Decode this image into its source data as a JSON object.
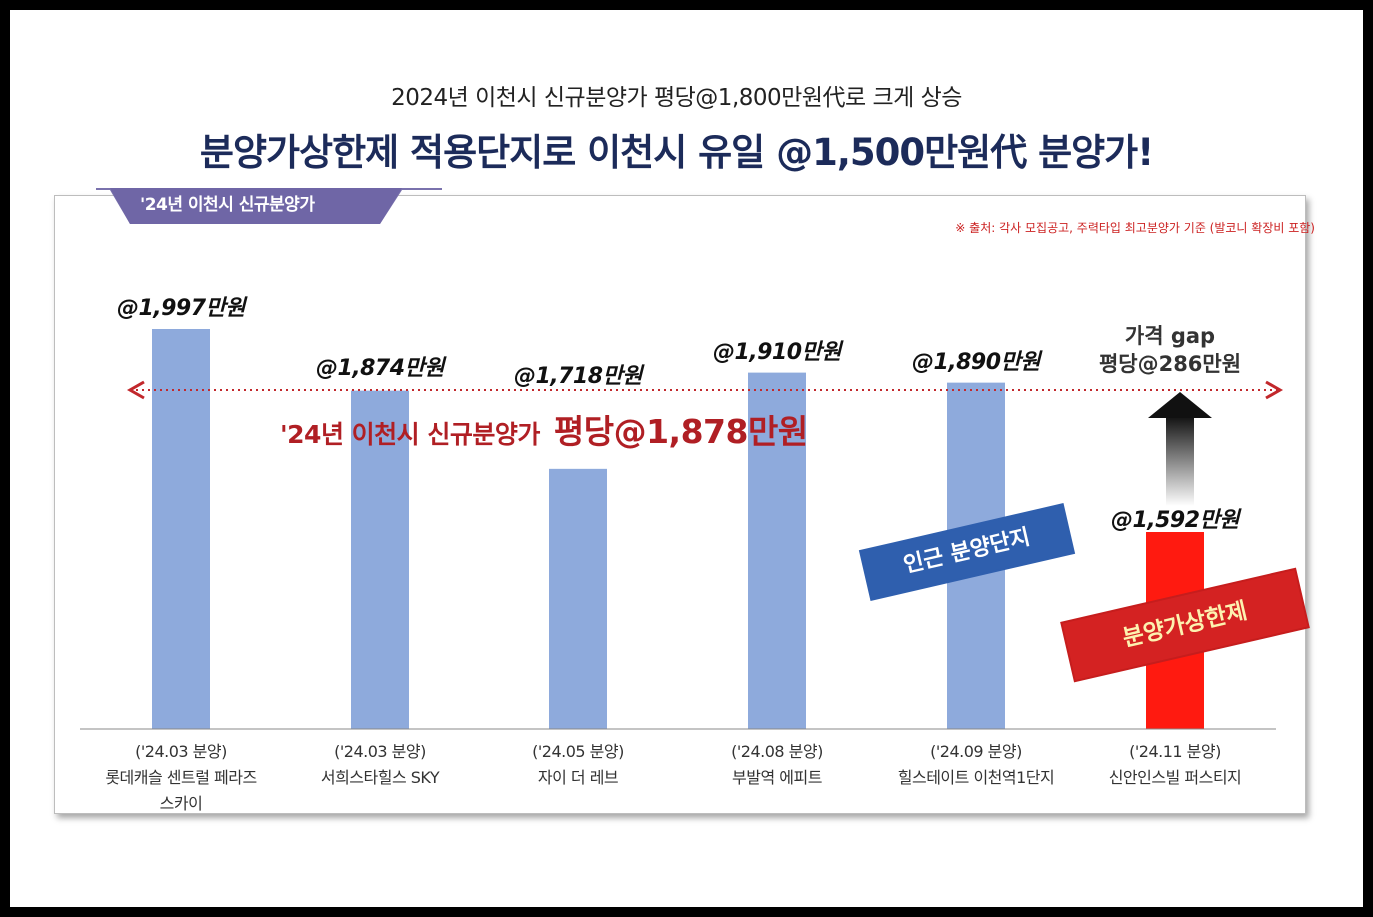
{
  "header": {
    "subtitle": "2024년 이천시 신규분양가 평당@1,800만원代로 크게 상승",
    "title": "분양가상한제 적용단지로 이천시 유일 @1,500만원代 분양가!"
  },
  "panel": {
    "tab_label": "'24년  이천시 신규분양가",
    "source_note": "※ 출처: 각사 모집공고, 주력타입 최고분양가 기준 (발코니 확장비 포함)"
  },
  "colors": {
    "bar": "#8eaadc",
    "highlight_bar": "#ff1a10",
    "avg_line": "#c2282c",
    "title": "#1c2b5a"
  },
  "annotations": {
    "avg_label_prefix": "'24년 이천시  신규분양가",
    "avg_label_value": "평당@1,878만원",
    "gap_line1": "가격 gap",
    "gap_line2": "평당@286만원",
    "nearby_stamp": "인근 분양단지",
    "cap_stamp": "분양가상한제"
  },
  "chart_data": {
    "type": "bar",
    "categories": [
      {
        "period": "('24.03 분양)",
        "name": "롯데캐슬 센트럴 페라즈\n스카이"
      },
      {
        "period": "('24.03 분양)",
        "name": "서희스타힐스 SKY"
      },
      {
        "period": "('24.05 분양)",
        "name": "자이 더 레브"
      },
      {
        "period": "('24.08 분양)",
        "name": "부발역 에피트"
      },
      {
        "period": "('24.09 분양)",
        "name": "힐스테이트 이천역1단지"
      },
      {
        "period": "('24.11 분양)",
        "name": "신안인스빌 퍼스티지"
      }
    ],
    "values": [
      1997,
      1874,
      1718,
      1910,
      1890,
      1592
    ],
    "value_labels": [
      "@1,997만원",
      "@1,874만원",
      "@1,718만원",
      "@1,910만원",
      "@1,890만원",
      "@1,592만원"
    ],
    "highlight_index": 5,
    "average": 1878,
    "gap": 286,
    "ylim": [
      0,
      2000
    ],
    "grid": false
  }
}
